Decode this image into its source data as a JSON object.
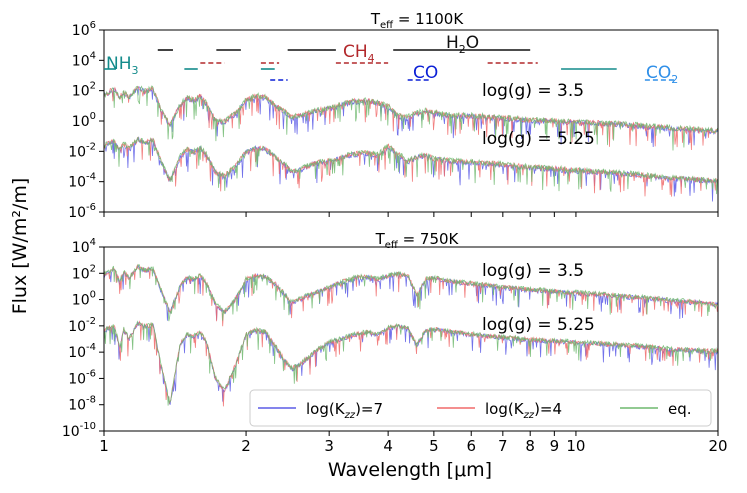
{
  "chart_data": [
    {
      "type": "line",
      "title": "T_eff = 1100K",
      "title_main": "T",
      "title_sub": "eff",
      "title_rest": " = 1100K",
      "xscale": "log",
      "yscale": "log",
      "xlim": [
        1,
        20
      ],
      "ylim": [
        1e-06,
        1000000.0
      ],
      "ytick_exponents": [
        -6,
        -4,
        -2,
        0,
        2,
        4,
        6
      ],
      "annotations": [
        {
          "text": "log(g) = 3.5"
        },
        {
          "text": "log(g) = 5.25"
        }
      ],
      "molecules": [
        {
          "label": "NH",
          "sub": "3",
          "color": "#138b8b"
        },
        {
          "label": "CH",
          "sub": "4",
          "color": "#b2282b"
        },
        {
          "label": "H",
          "sub": "2",
          "rest": "O",
          "color": "#111111"
        },
        {
          "label": "CO",
          "sub": "",
          "color": "#0a1fd6"
        },
        {
          "label": "CO",
          "sub": "2",
          "color": "#2f8fe8"
        }
      ],
      "band_markers": {
        "H2O": [
          [
            1.3,
            1.4
          ],
          [
            1.73,
            1.95
          ],
          [
            2.45,
            3.1
          ],
          [
            4.1,
            8.0
          ]
        ],
        "NH3": [
          [
            1.0,
            1.06
          ],
          [
            1.48,
            1.58
          ],
          [
            2.15,
            2.3
          ],
          [
            9.3,
            12.2
          ]
        ],
        "CH4": [
          [
            1.6,
            1.8
          ],
          [
            2.15,
            2.35
          ],
          [
            3.1,
            4.0
          ],
          [
            6.5,
            8.3
          ]
        ],
        "CO": [
          [
            2.25,
            2.45
          ],
          [
            4.4,
            4.9
          ]
        ],
        "CO2": [
          [
            14.0,
            16.2
          ]
        ]
      },
      "series": [
        {
          "name": "log(K_zz)=7",
          "color": "#5b5be6"
        },
        {
          "name": "log(K_zz)=4",
          "color": "#f06a6a"
        },
        {
          "name": "eq.",
          "color": "#6fb86f"
        }
      ],
      "spectra": [
        {
          "label": "log(g) = 3.5",
          "wavelength": [
            1.0,
            1.05,
            1.08,
            1.1,
            1.13,
            1.18,
            1.22,
            1.27,
            1.32,
            1.38,
            1.45,
            1.5,
            1.55,
            1.6,
            1.65,
            1.72,
            1.8,
            1.9,
            2.0,
            2.1,
            2.2,
            2.3,
            2.4,
            2.5,
            2.6,
            2.8,
            3.0,
            3.2,
            3.4,
            3.6,
            3.8,
            4.0,
            4.2,
            4.4,
            4.6,
            4.8,
            5.0,
            5.5,
            6.0,
            7.0,
            8.0,
            10.0,
            13.0,
            16.0,
            20.0
          ],
          "flux": [
            40,
            120,
            30,
            80,
            30,
            150,
            80,
            120,
            5,
            0.5,
            10,
            30,
            20,
            40,
            12,
            1,
            0.8,
            3,
            20,
            40,
            30,
            10,
            4,
            1.5,
            2,
            4,
            6,
            12,
            18,
            20,
            14,
            8,
            2,
            1.5,
            3,
            4,
            3,
            2,
            2,
            1.5,
            1,
            0.8,
            0.5,
            0.3,
            0.2
          ]
        },
        {
          "label": "log(g) = 5.25",
          "wavelength": [
            1.0,
            1.05,
            1.08,
            1.1,
            1.13,
            1.18,
            1.22,
            1.27,
            1.32,
            1.38,
            1.45,
            1.5,
            1.55,
            1.6,
            1.65,
            1.72,
            1.8,
            1.9,
            2.0,
            2.1,
            2.2,
            2.3,
            2.4,
            2.5,
            2.6,
            2.8,
            3.0,
            3.2,
            3.4,
            3.6,
            3.8,
            4.0,
            4.2,
            4.4,
            4.6,
            4.8,
            5.0,
            5.5,
            6.0,
            7.0,
            8.0,
            10.0,
            13.0,
            16.0,
            20.0
          ],
          "flux": [
            0.02,
            0.04,
            0.01,
            0.03,
            0.012,
            0.06,
            0.03,
            0.05,
            0.002,
            0.0001,
            0.004,
            0.012,
            0.008,
            0.015,
            0.005,
            0.0004,
            0.0002,
            0.001,
            0.008,
            0.015,
            0.012,
            0.004,
            0.0015,
            0.0004,
            0.0006,
            0.0015,
            0.002,
            0.004,
            0.006,
            0.007,
            0.005,
            0.02,
            0.006,
            0.002,
            0.004,
            0.005,
            0.003,
            0.002,
            0.0018,
            0.0012,
            0.0008,
            0.0005,
            0.0003,
            0.00015,
            0.0001
          ]
        }
      ]
    },
    {
      "type": "line",
      "title": "T_eff = 750K",
      "title_main": "T",
      "title_sub": "eff",
      "title_rest": " = 750K",
      "xscale": "log",
      "yscale": "log",
      "xlim": [
        1,
        20
      ],
      "ylim": [
        1e-10,
        10000.0
      ],
      "ytick_exponents": [
        -10,
        -8,
        -6,
        -4,
        -2,
        0,
        2,
        4
      ],
      "xlabel": "Wavelength [μm]",
      "xtick_labels": [
        "1",
        "2",
        "3",
        "4",
        "5",
        "6",
        "7",
        "8",
        "9",
        "10",
        "20"
      ],
      "xtick_values": [
        1,
        2,
        3,
        4,
        5,
        6,
        7,
        8,
        9,
        10,
        20
      ],
      "annotations": [
        {
          "text": "log(g) = 3.5"
        },
        {
          "text": "log(g) = 5.25"
        }
      ],
      "series": [
        {
          "name": "log(K_zz)=7",
          "color": "#5b5be6"
        },
        {
          "name": "log(K_zz)=4",
          "color": "#f06a6a"
        },
        {
          "name": "eq.",
          "color": "#6fb86f"
        }
      ],
      "legend": {
        "placement": "lower-right",
        "entries": [
          "log(K_zz)=7",
          "log(K_zz)=4",
          "eq."
        ]
      },
      "spectra": [
        {
          "label": "log(g) = 3.5",
          "wavelength": [
            1.0,
            1.05,
            1.08,
            1.1,
            1.13,
            1.18,
            1.22,
            1.27,
            1.32,
            1.38,
            1.45,
            1.5,
            1.55,
            1.6,
            1.65,
            1.72,
            1.8,
            1.9,
            2.0,
            2.1,
            2.2,
            2.3,
            2.4,
            2.5,
            2.6,
            2.8,
            3.0,
            3.2,
            3.4,
            3.6,
            3.8,
            4.0,
            4.2,
            4.4,
            4.6,
            4.8,
            5.0,
            5.5,
            6.0,
            7.0,
            8.0,
            10.0,
            13.0,
            16.0,
            20.0
          ],
          "flux": [
            80,
            200,
            20,
            120,
            40,
            300,
            150,
            200,
            5,
            0.1,
            10,
            40,
            30,
            60,
            15,
            0.5,
            0.1,
            1,
            30,
            60,
            50,
            15,
            3,
            0.5,
            1,
            3,
            8,
            20,
            40,
            50,
            30,
            60,
            80,
            60,
            2,
            30,
            40,
            20,
            15,
            8,
            5,
            3,
            1.5,
            0.8,
            0.4
          ]
        },
        {
          "label": "log(g) = 5.25",
          "wavelength": [
            1.0,
            1.05,
            1.08,
            1.1,
            1.13,
            1.18,
            1.22,
            1.27,
            1.32,
            1.38,
            1.45,
            1.5,
            1.55,
            1.6,
            1.65,
            1.72,
            1.8,
            1.9,
            2.0,
            2.1,
            2.2,
            2.3,
            2.4,
            2.5,
            2.6,
            2.8,
            3.0,
            3.2,
            3.4,
            3.6,
            3.8,
            4.0,
            4.2,
            4.4,
            4.6,
            4.8,
            5.0,
            5.5,
            6.0,
            7.0,
            8.0,
            10.0,
            13.0,
            16.0,
            20.0
          ],
          "flux": [
            0.004,
            0.01,
            0.0002,
            0.005,
            0.001,
            0.015,
            0.008,
            0.012,
            1e-05,
            1e-08,
            0.0004,
            0.002,
            0.0015,
            0.003,
            0.0005,
            1e-06,
            1e-07,
            1e-05,
            0.002,
            0.004,
            0.003,
            0.0003,
            3e-05,
            5e-06,
            1e-05,
            0.0001,
            0.0005,
            0.001,
            0.002,
            0.003,
            0.002,
            0.006,
            0.008,
            0.006,
            0.0003,
            0.004,
            0.005,
            0.003,
            0.002,
            0.0012,
            0.0008,
            0.0005,
            0.0003,
            0.00015,
            0.0001
          ]
        }
      ]
    }
  ],
  "ylabel": "Flux [W/m²/m]"
}
